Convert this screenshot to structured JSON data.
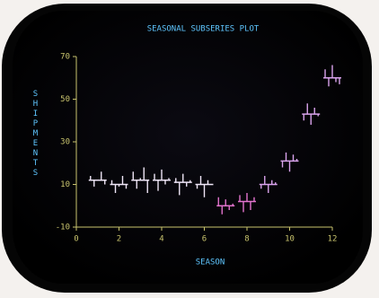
{
  "chart_data": {
    "type": "seasonal_subseries",
    "title": "SEASONAL SUBSERIES PLOT",
    "x_label": "SEASON",
    "y_label": "SHIPMENTS",
    "x": [
      1,
      2,
      3,
      4,
      5,
      6,
      7,
      8,
      9,
      10,
      11,
      12
    ],
    "means": [
      12,
      10,
      12,
      12,
      11,
      10,
      0,
      2,
      10,
      21,
      43,
      60
    ],
    "subseries": [
      [
        14,
        9,
        12,
        16,
        10
      ],
      [
        12,
        6,
        9,
        14,
        8
      ],
      [
        16,
        8,
        13,
        18,
        6
      ],
      [
        15,
        7,
        17,
        10,
        13
      ],
      [
        13,
        5,
        15,
        9,
        12
      ],
      [
        8,
        14,
        4,
        12,
        10
      ],
      [
        4,
        -4,
        3,
        -2,
        1
      ],
      [
        5,
        -3,
        6,
        -2,
        4
      ],
      [
        8,
        14,
        6,
        12,
        11
      ],
      [
        18,
        25,
        16,
        24,
        22
      ],
      [
        40,
        48,
        38,
        46,
        42
      ],
      [
        64,
        56,
        66,
        58,
        57
      ]
    ],
    "colors": [
      "#efe6f7",
      "#efe6f7",
      "#efe6f7",
      "#efe6f7",
      "#efe6f7",
      "#efe6f7",
      "#e273cd",
      "#e273cd",
      "#d9a3ec",
      "#d9a3ec",
      "#d9a3ec",
      "#d9a3ec"
    ],
    "axis_color": "#c9c46e",
    "title_color": "#5fc6ff",
    "xlim": [
      0,
      12
    ],
    "xticks": [
      0,
      2,
      4,
      6,
      8,
      10,
      12
    ],
    "ylim": [
      -10,
      70
    ],
    "yticks": [
      -10,
      10,
      30,
      50,
      70
    ],
    "grid": false
  }
}
